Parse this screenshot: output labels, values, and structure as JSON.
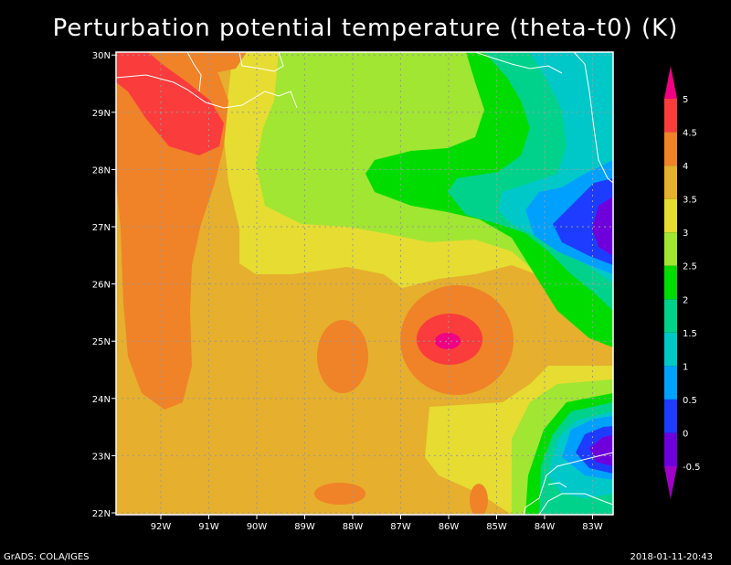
{
  "title": "Perturbation potential temperature (theta-t0) (K)",
  "footer": {
    "left": "GrADS: COLA/IGES",
    "right": "2018-01-11-20:43"
  },
  "map": {
    "lon_ticks": [
      "92W",
      "91W",
      "90W",
      "89W",
      "88W",
      "87W",
      "86W",
      "85W",
      "84W",
      "83W"
    ],
    "lat_ticks": [
      "22N",
      "23N",
      "24N",
      "25N",
      "26N",
      "27N",
      "28N",
      "29N",
      "30N"
    ]
  },
  "colorbar": {
    "labels": [
      "-0.5",
      "0",
      "0.5",
      "1",
      "1.5",
      "2",
      "2.5",
      "3",
      "3.5",
      "4",
      "4.5",
      "5"
    ],
    "colors": [
      "#a000c8",
      "#6e00dc",
      "#1e3cff",
      "#00a0ff",
      "#00c8c8",
      "#00d28c",
      "#00dc00",
      "#a0e632",
      "#e6dc32",
      "#e6af2d",
      "#f08228",
      "#fa3c3c",
      "#f00082"
    ]
  }
}
